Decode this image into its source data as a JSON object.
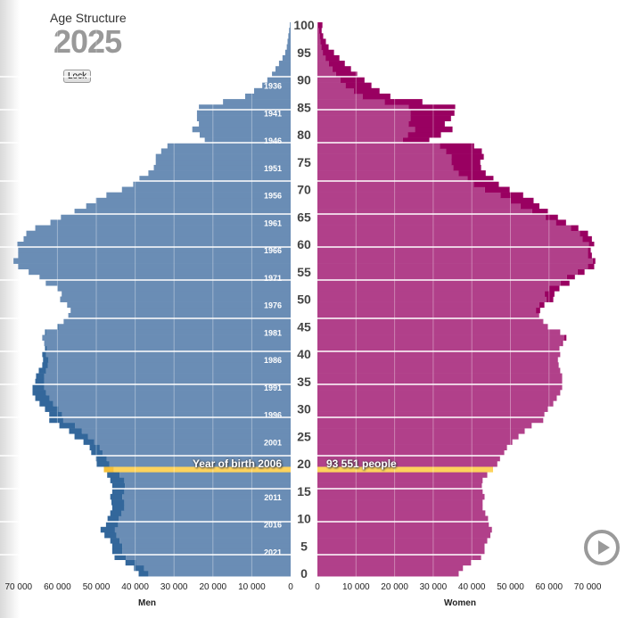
{
  "header": {
    "title": "Age Structure",
    "year": "2025",
    "lock_label": "Lock"
  },
  "highlight": {
    "birth_label": "Year of birth 2006",
    "people_label": "93 551 people",
    "age": 19
  },
  "colors": {
    "men": "#6a8db5",
    "men_excess": "#33679b",
    "women": "#b1408a",
    "women_excess": "#990061",
    "highlight": "#fdd35c",
    "highlight_excess": "#f5c03a"
  },
  "chart_data": {
    "type": "bar",
    "title": "Age Structure 2025",
    "orientation": "population-pyramid",
    "xlabel_left": "Men",
    "xlabel_right": "Women",
    "xlim": [
      0,
      70000
    ],
    "x_ticks": [
      "0",
      "10 000",
      "20 000",
      "30 000",
      "40 000",
      "50 000",
      "60 000",
      "70 000"
    ],
    "x_tick_values": [
      0,
      10000,
      20000,
      30000,
      40000,
      50000,
      60000,
      70000
    ],
    "age_ticks": [
      "0",
      "5",
      "10",
      "15",
      "20",
      "25",
      "30",
      "35",
      "40",
      "45",
      "50",
      "55",
      "60",
      "65",
      "70",
      "75",
      "80",
      "85",
      "90",
      "95",
      "100"
    ],
    "birth_year_labels": [
      "1936",
      "1941",
      "1946",
      "1951",
      "1956",
      "1961",
      "1966",
      "1971",
      "1976",
      "1981",
      "1986",
      "1991",
      "1996",
      "2001",
      "2006",
      "2011",
      "2016",
      "2021"
    ],
    "ages_from": 0,
    "series": [
      {
        "name": "Men",
        "values": [
          39100,
          40300,
          42500,
          45300,
          45900,
          45900,
          46400,
          47900,
          48900,
          47500,
          47100,
          46400,
          45900,
          46100,
          46400,
          45900,
          45900,
          46400,
          47200,
          48050,
          49900,
          50100,
          51300,
          51700,
          53300,
          55600,
          57000,
          59500,
          62100,
          62100,
          63200,
          64600,
          65700,
          66400,
          66400,
          65700,
          65500,
          64800,
          63900,
          63700,
          63900,
          63200,
          63400,
          63900,
          63200,
          60000,
          58400,
          57200,
          56600,
          57500,
          59300,
          58900,
          60000,
          63000,
          64600,
          67400,
          70100,
          71300,
          70100,
          70100,
          70300,
          68700,
          68000,
          65700,
          61800,
          59100,
          55600,
          52600,
          50100,
          47400,
          43400,
          40500,
          38900,
          36600,
          35200,
          34700,
          34700,
          33300,
          31700,
          22100,
          23400,
          25300,
          23600,
          24100,
          24100,
          23600,
          17400,
          11700,
          9400,
          7300,
          6000,
          4800,
          3900,
          3000,
          2100,
          1400,
          1000,
          800,
          600,
          400,
          200
        ]
      },
      {
        "name": "Women",
        "values": [
          36600,
          37700,
          39800,
          42400,
          43300,
          43300,
          44000,
          44800,
          45200,
          44400,
          44200,
          43500,
          42800,
          42800,
          43300,
          42800,
          42600,
          42800,
          44000,
          45500,
          46600,
          47300,
          48400,
          49100,
          50500,
          52100,
          53700,
          55500,
          58500,
          58800,
          59700,
          61100,
          62000,
          62900,
          63400,
          63400,
          63400,
          62900,
          62500,
          62300,
          62900,
          62700,
          63600,
          64500,
          62900,
          59700,
          58500,
          57400,
          57700,
          58800,
          61100,
          61400,
          62700,
          65300,
          66700,
          69200,
          71700,
          72000,
          71100,
          70800,
          71700,
          71100,
          70100,
          67600,
          64400,
          62300,
          59700,
          57500,
          56000,
          53300,
          49800,
          47000,
          45600,
          43600,
          42400,
          42200,
          43100,
          42600,
          40600,
          29000,
          32000,
          35000,
          33000,
          34600,
          35500,
          35700,
          27200,
          18900,
          16100,
          14000,
          12200,
          10300,
          8700,
          7100,
          5700,
          4300,
          2900,
          2200,
          1500,
          1100,
          1300
        ]
      }
    ]
  }
}
